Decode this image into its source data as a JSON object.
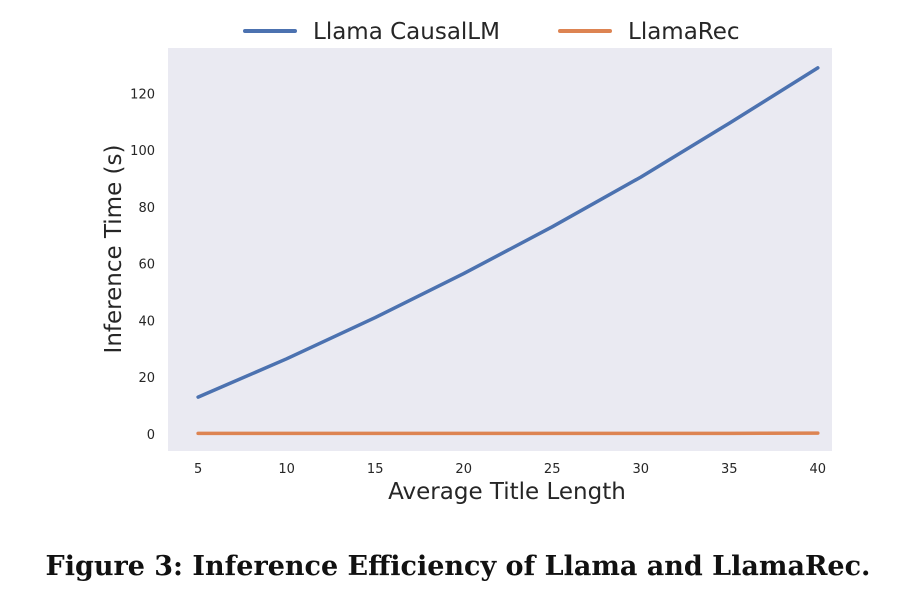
{
  "chart_data": {
    "type": "line",
    "title": "",
    "xlabel": "Average Title Length",
    "ylabel": "Inference Time (s)",
    "xlim": [
      3.3,
      40.8
    ],
    "ylim": [
      -6,
      136
    ],
    "x": [
      5,
      10,
      15,
      20,
      25,
      30,
      35,
      40
    ],
    "x_ticks": [
      5,
      10,
      15,
      20,
      25,
      30,
      35,
      40
    ],
    "y_ticks": [
      0,
      20,
      40,
      60,
      80,
      100,
      120
    ],
    "grid": false,
    "legend_position": "top-center",
    "series": [
      {
        "name": "Llama CausalLM",
        "color": "#4c72b0",
        "values": [
          13,
          26.5,
          41,
          56.5,
          73,
          90.5,
          109.5,
          129
        ]
      },
      {
        "name": "LlamaRec",
        "color": "#dd8452",
        "values": [
          0.2,
          0.2,
          0.2,
          0.2,
          0.2,
          0.2,
          0.2,
          0.3
        ]
      }
    ],
    "plot_background": "#eaeaf2"
  },
  "caption": "Figure 3: Inference Efficiency of Llama and LlamaRec."
}
